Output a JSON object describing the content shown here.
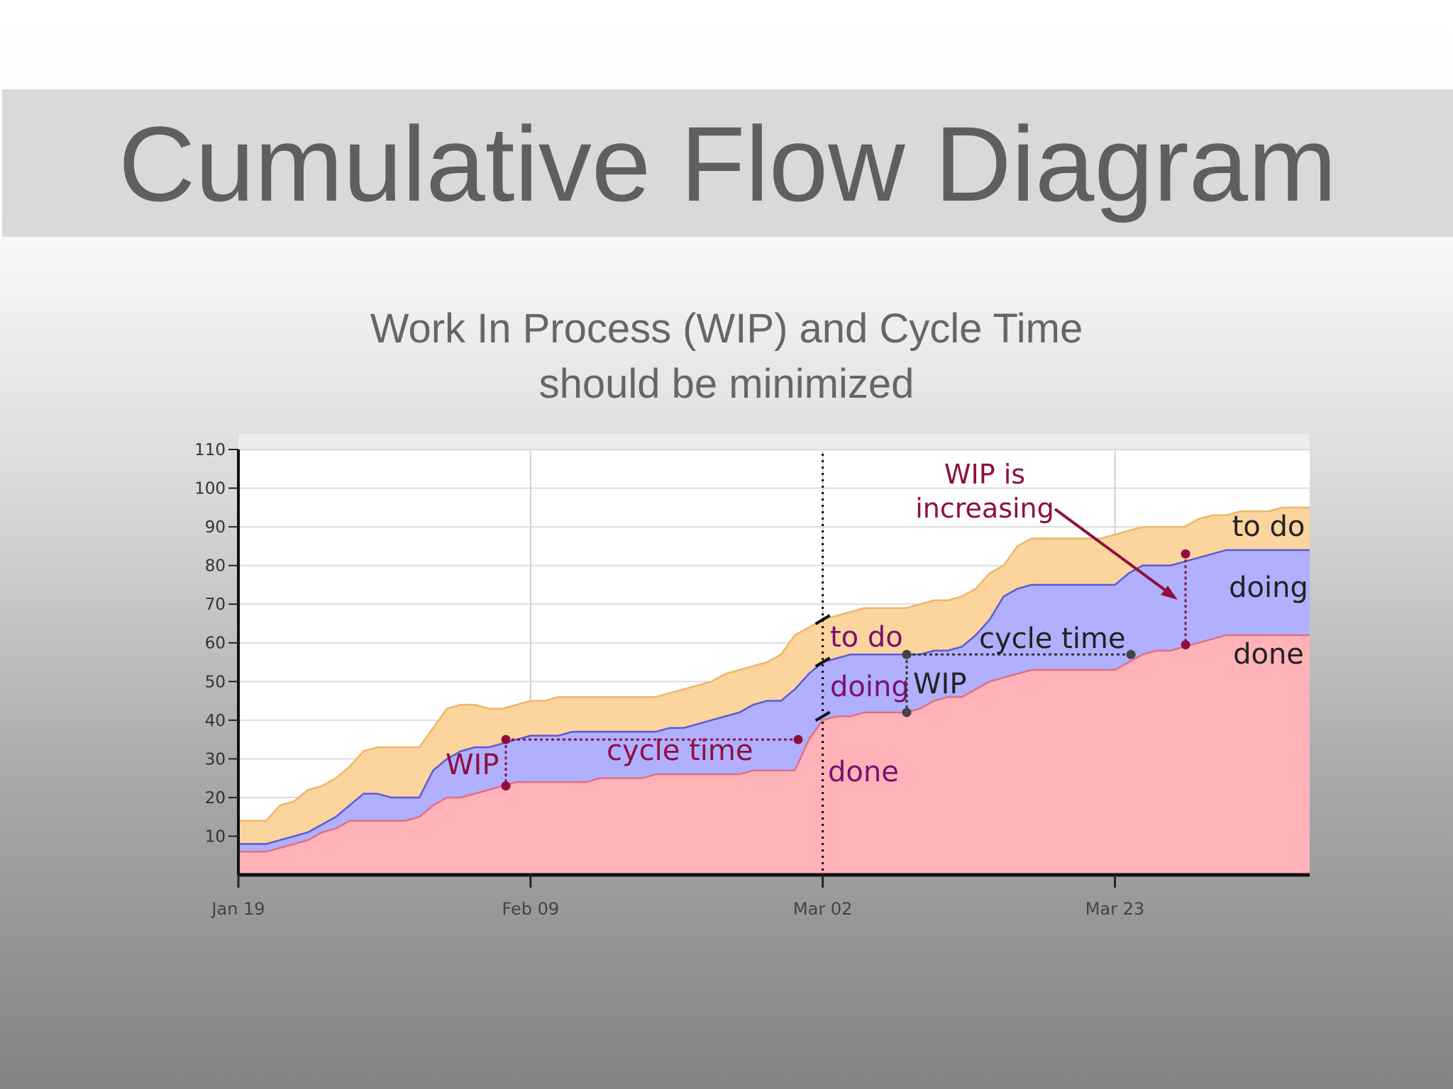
{
  "slide": {
    "title": "Cumulative Flow Diagram",
    "subtitle_line1": "Work In Process (WIP) and Cycle Time",
    "subtitle_line2": "should be minimized"
  },
  "chart_data": {
    "type": "area",
    "x_tick_labels": [
      "Jan 19",
      "Feb 09",
      "Mar 02",
      "Mar 23"
    ],
    "x_tick_days": [
      0,
      21,
      42,
      63
    ],
    "x_range": [
      0,
      77
    ],
    "y_ticks": [
      10,
      20,
      30,
      40,
      50,
      60,
      70,
      80,
      90,
      100,
      110
    ],
    "ylim": [
      0,
      110
    ],
    "grid": true,
    "x": [
      0,
      2,
      3,
      4,
      5,
      6,
      7,
      8,
      9,
      10,
      11,
      12,
      13,
      14,
      15,
      16,
      17,
      18,
      19,
      20,
      21,
      22,
      23,
      24,
      25,
      26,
      27,
      28,
      29,
      30,
      31,
      32,
      33,
      34,
      35,
      36,
      37,
      38,
      39,
      40,
      41,
      42,
      43,
      44,
      45,
      46,
      47,
      48,
      49,
      50,
      51,
      52,
      53,
      54,
      55,
      56,
      57,
      58,
      59,
      60,
      61,
      62,
      63,
      64,
      65,
      66,
      67,
      68,
      69,
      70,
      71,
      72,
      73,
      74,
      75,
      76,
      77
    ],
    "series": [
      {
        "name": "done",
        "color": "#ffb3b8",
        "values": [
          6,
          6,
          7,
          8,
          9,
          11,
          12,
          14,
          14,
          14,
          14,
          14,
          15,
          18,
          20,
          20,
          21,
          22,
          23,
          24,
          24,
          24,
          24,
          24,
          24,
          25,
          25,
          25,
          25,
          26,
          26,
          26,
          26,
          26,
          26,
          26,
          27,
          27,
          27,
          27,
          35,
          40,
          41,
          41,
          42,
          42,
          42,
          42,
          43,
          45,
          46,
          46,
          48,
          50,
          51,
          52,
          53,
          53,
          53,
          53,
          53,
          53,
          53,
          55,
          57,
          58,
          58,
          59,
          60,
          61,
          62,
          62,
          62,
          62,
          62,
          62,
          62
        ]
      },
      {
        "name": "doing",
        "color": "#b0b0ff",
        "values": [
          8,
          8,
          9,
          10,
          11,
          13,
          15,
          18,
          21,
          21,
          20,
          20,
          20,
          27,
          30,
          32,
          33,
          33,
          34,
          35,
          36,
          36,
          36,
          37,
          37,
          37,
          37,
          37,
          37,
          37,
          38,
          38,
          39,
          40,
          41,
          42,
          44,
          45,
          45,
          48,
          52,
          55,
          56,
          57,
          57,
          57,
          57,
          57,
          57,
          58,
          58,
          59,
          62,
          66,
          72,
          74,
          75,
          75,
          75,
          75,
          75,
          75,
          75,
          78,
          80,
          80,
          80,
          81,
          82,
          83,
          84,
          84,
          84,
          84,
          84,
          84,
          84
        ]
      },
      {
        "name": "to do",
        "color": "#fbd49e",
        "values": [
          14,
          14,
          18,
          19,
          22,
          23,
          25,
          28,
          32,
          33,
          33,
          33,
          33,
          38,
          43,
          44,
          44,
          43,
          43,
          44,
          45,
          45,
          46,
          46,
          46,
          46,
          46,
          46,
          46,
          46,
          47,
          48,
          49,
          50,
          52,
          53,
          54,
          55,
          57,
          62,
          64,
          66,
          67,
          68,
          69,
          69,
          69,
          69,
          70,
          71,
          71,
          72,
          74,
          78,
          80,
          85,
          87,
          87,
          87,
          87,
          87,
          87,
          88,
          89,
          90,
          90,
          90,
          90,
          92,
          93,
          93,
          94,
          94,
          94,
          95,
          95,
          95
        ]
      }
    ],
    "annotations": {
      "wip_left": "WIP",
      "cycle_time_left": "cycle time",
      "todo_mid": "to do",
      "doing_mid": "doing",
      "done_mid": "done",
      "wip_mid": "WIP",
      "cycle_time_right": "cycle time",
      "wip_increasing_line1": "WIP is",
      "wip_increasing_line2": "increasing",
      "legend_todo": "to do",
      "legend_doing": "doing",
      "legend_done": "done"
    },
    "colors": {
      "annotation_red": "#8f1040",
      "annotation_purple": "#7a0f70",
      "annotation_dark": "#222222",
      "doing_line": "#5a5ad6"
    }
  }
}
